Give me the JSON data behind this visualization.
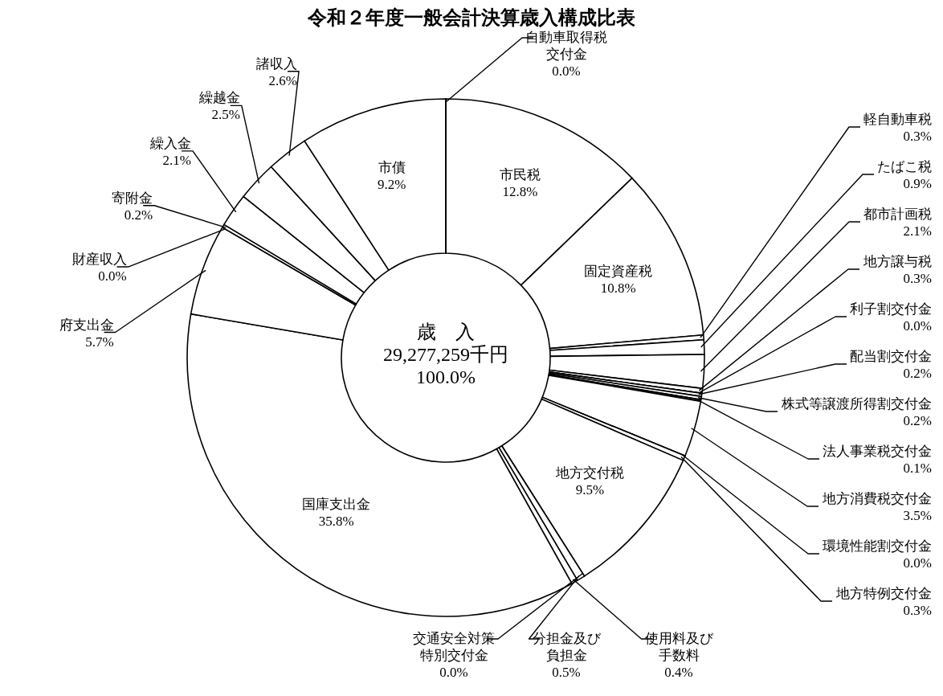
{
  "chart_data": {
    "type": "donut",
    "title": "令和２年度一般会計決算歳入構成比表",
    "categories": [
      "市民税",
      "固定資産税",
      "軽自動車税",
      "たばこ税",
      "都市計画税",
      "地方譲与税",
      "利子割交付金",
      "配当割交付金",
      "株式等譲渡所得割交付金",
      "法人事業税交付金",
      "地方消費税交付金",
      "環境性能割交付金",
      "地方特例交付金",
      "地方交付税",
      "交通安全対策特別交付金",
      "分担金及び負担金",
      "使用料及び手数料",
      "国庫支出金",
      "府支出金",
      "財産収入",
      "寄附金",
      "繰入金",
      "繰越金",
      "諸収入",
      "市債",
      "自動車取得税交付金"
    ],
    "values": [
      12.8,
      10.8,
      0.3,
      0.9,
      2.1,
      0.3,
      0.0,
      0.2,
      0.2,
      0.1,
      3.5,
      0.0,
      0.3,
      9.5,
      0.0,
      0.5,
      0.4,
      35.8,
      5.7,
      0.0,
      0.2,
      2.1,
      2.5,
      2.6,
      9.2,
      0.0
    ],
    "value_labels": [
      "12.8%",
      "10.8%",
      "0.3%",
      "0.9%",
      "2.1%",
      "0.3%",
      "0.0%",
      "0.2%",
      "0.2%",
      "0.1%",
      "3.5%",
      "0.0%",
      "0.3%",
      "9.5%",
      "0.0%",
      "0.5%",
      "0.4%",
      "35.8%",
      "5.7%",
      "0.0%",
      "0.2%",
      "2.1%",
      "2.5%",
      "2.6%",
      "9.2%",
      "0.0%"
    ],
    "colors": [
      "#ffffff",
      "#ffffff",
      "#ffffff",
      "#ffffff",
      "#ffffff",
      "#ffffff",
      "#ffffff",
      "#ffffff",
      "#ffffff",
      "#ffffff",
      "#ffffff",
      "#ffffff",
      "#ffffff",
      "#ffffff",
      "#ffffff",
      "#ffffff",
      "#ffffff",
      "#ffffff",
      "#ffffff",
      "#ffffff",
      "#ffffff",
      "#ffffff",
      "#ffffff",
      "#ffffff",
      "#ffffff",
      "#ffffff"
    ],
    "annotations": [
      "歳　入",
      "29,277,259千円",
      "100.0%"
    ]
  }
}
